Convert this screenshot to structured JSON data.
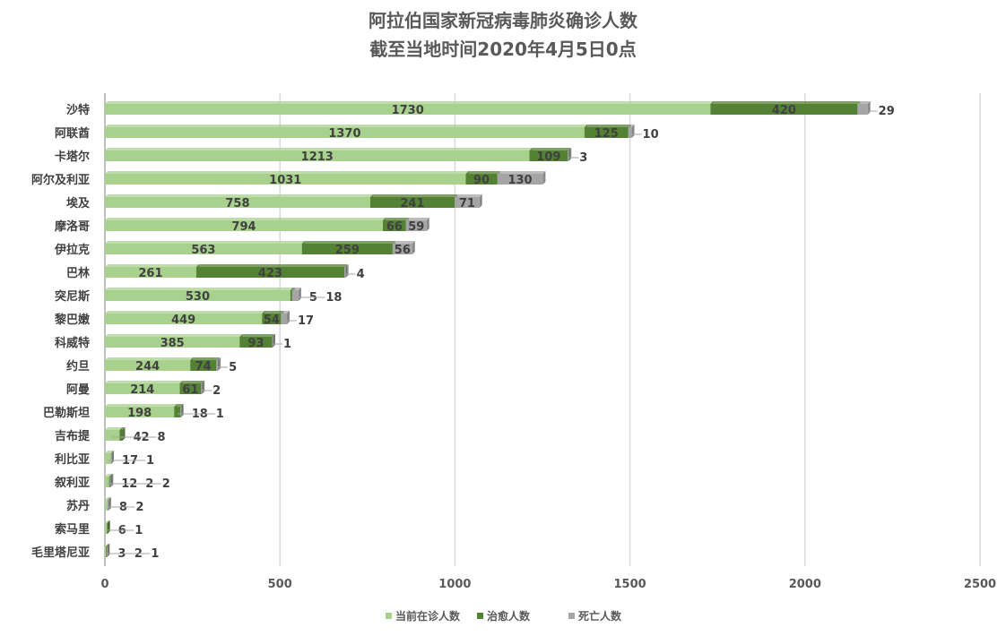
{
  "chart_data": {
    "type": "bar",
    "orientation": "horizontal",
    "stacked": true,
    "title": [
      "阿拉伯国家新冠病毒肺炎确诊人数",
      "截至当地时间2020年4月5日0点"
    ],
    "xlim": [
      0,
      2500
    ],
    "xticks": [
      0,
      500,
      1000,
      1500,
      2000,
      2500
    ],
    "grid": true,
    "legend_position": "bottom",
    "categories": [
      "沙特",
      "阿联酋",
      "卡塔尔",
      "阿尔及利亚",
      "埃及",
      "摩洛哥",
      "伊拉克",
      "巴林",
      "突尼斯",
      "黎巴嫩",
      "科威特",
      "约旦",
      "阿曼",
      "巴勒斯坦",
      "吉布提",
      "利比亚",
      "叙利亚",
      "苏丹",
      "索马里",
      "毛里塔尼亚"
    ],
    "series": [
      {
        "name": "当前在诊人数",
        "color": "#a9d18e",
        "values": [
          1730,
          1370,
          1213,
          1031,
          758,
          794,
          563,
          261,
          530,
          449,
          385,
          244,
          214,
          198,
          42,
          17,
          12,
          8,
          6,
          3
        ]
      },
      {
        "name": "治愈人数",
        "color": "#548235",
        "values": [
          420,
          125,
          109,
          90,
          241,
          66,
          259,
          423,
          5,
          54,
          93,
          74,
          61,
          18,
          8,
          0,
          2,
          0,
          1,
          2
        ]
      },
      {
        "name": "死亡人数",
        "color": "#a5a5a5",
        "values": [
          29,
          10,
          3,
          130,
          71,
          59,
          56,
          4,
          18,
          17,
          1,
          5,
          2,
          1,
          0,
          1,
          2,
          2,
          0,
          1
        ]
      }
    ]
  }
}
